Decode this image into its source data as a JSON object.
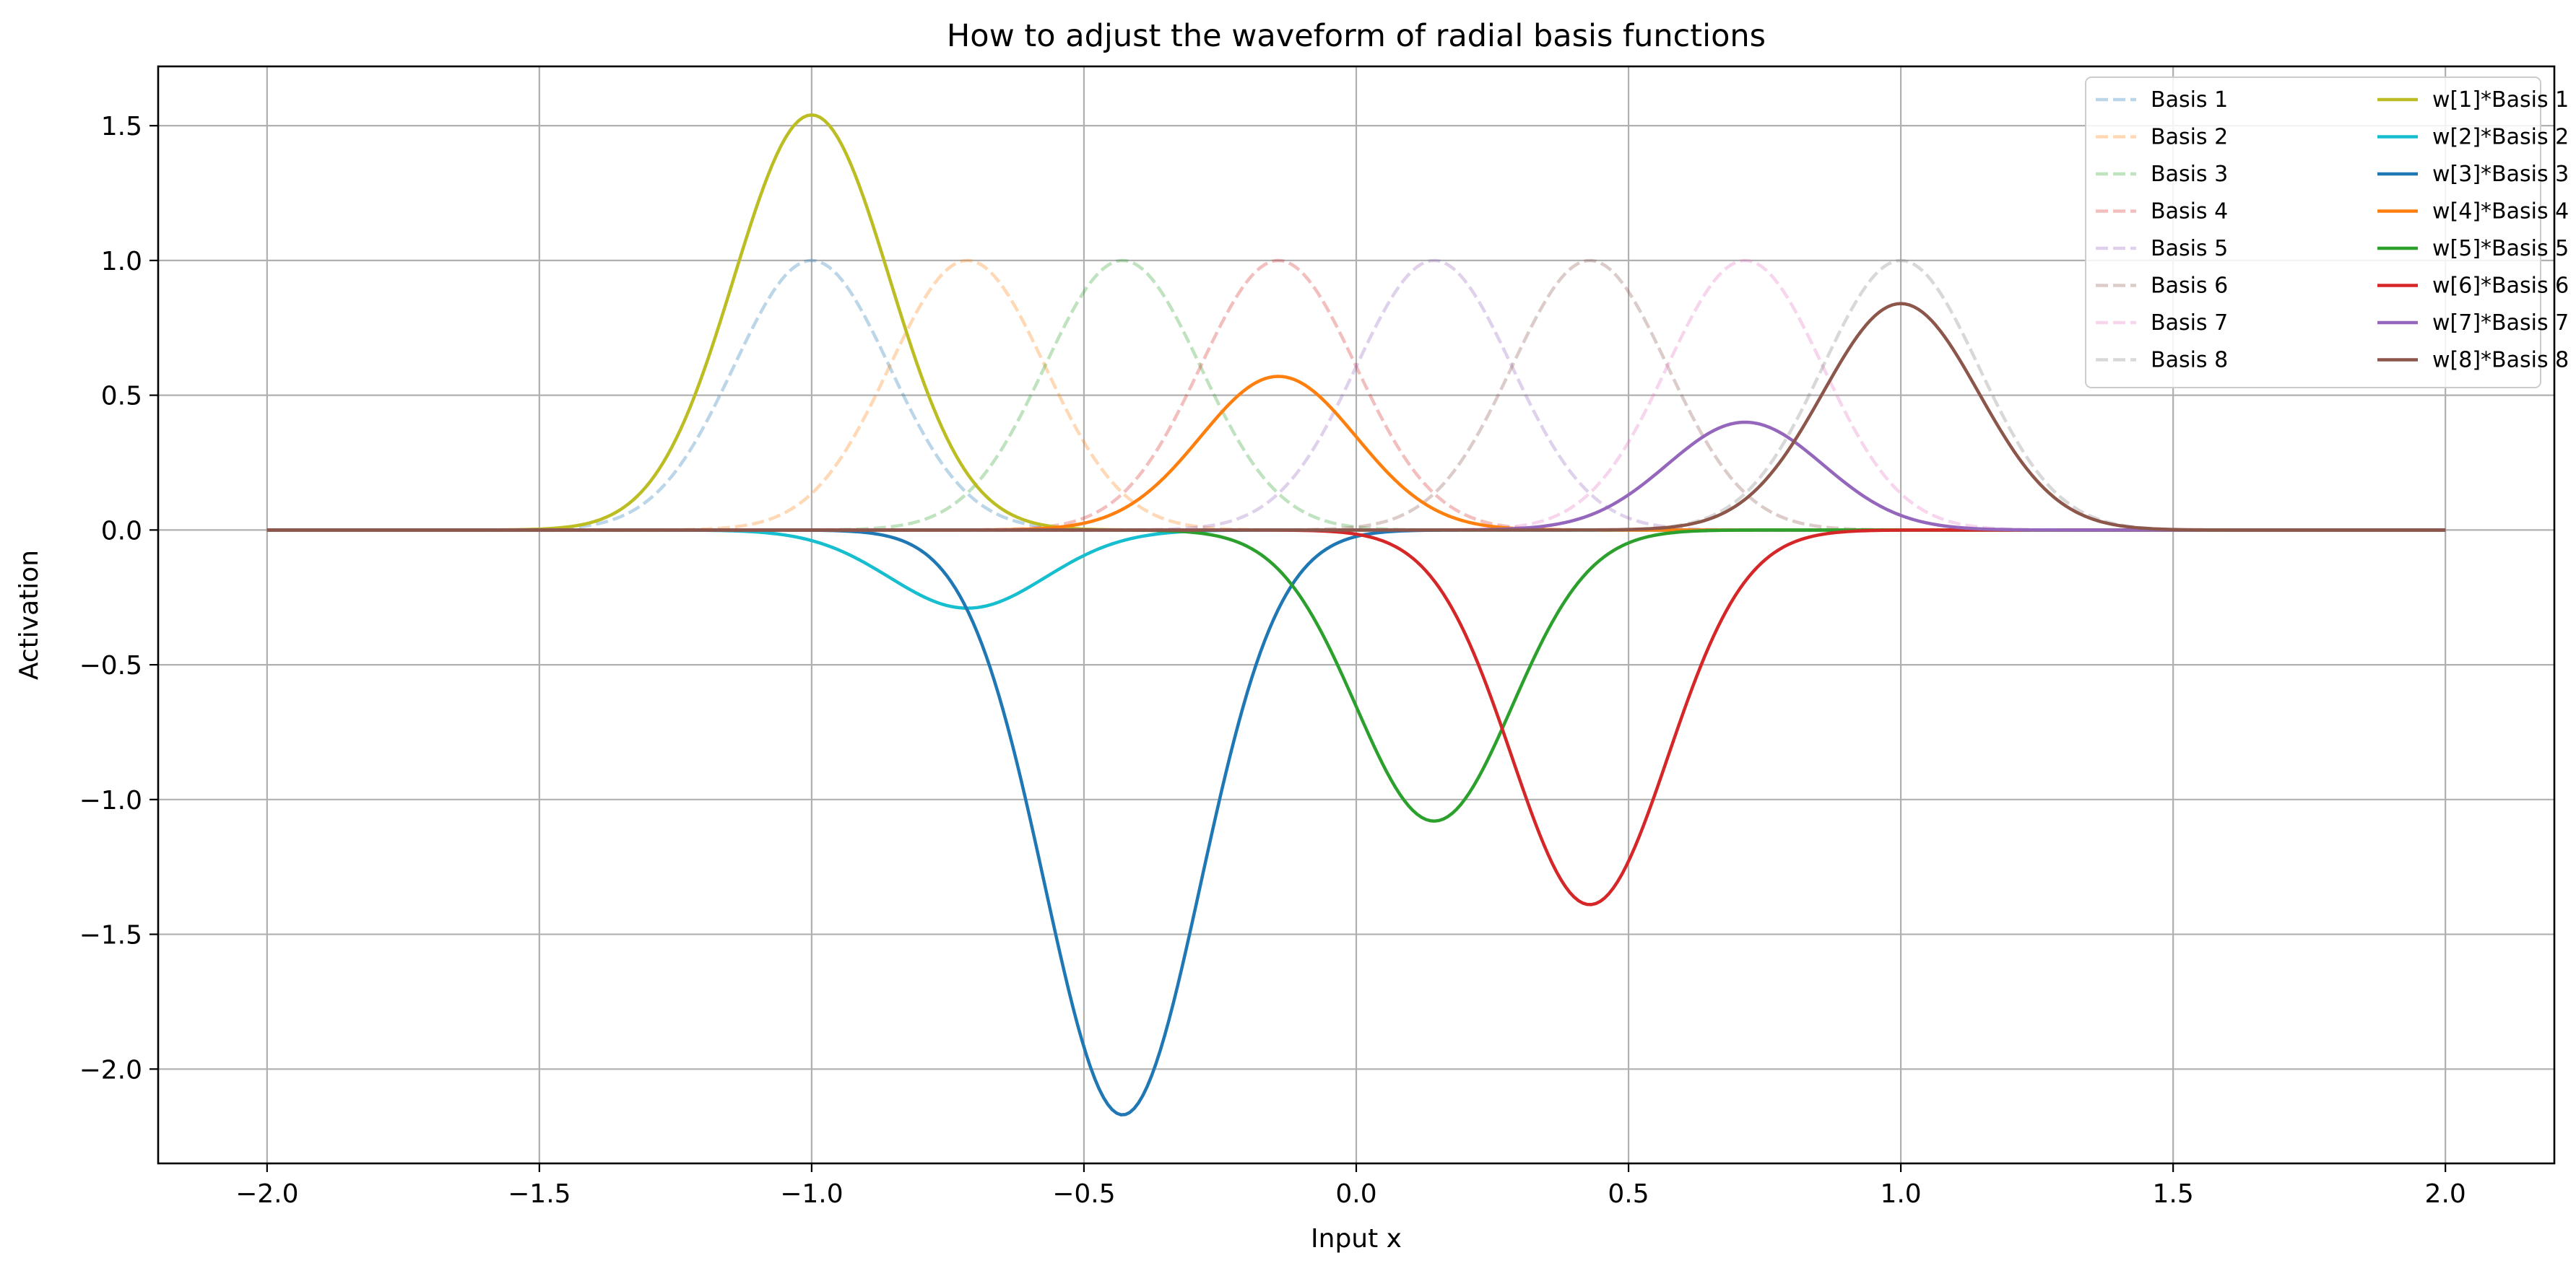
{
  "chart_data": {
    "type": "line",
    "title": "How to adjust the waveform of radial basis functions",
    "xlabel": "Input x",
    "ylabel": "Activation",
    "xlim": [
      -2.2,
      2.2
    ],
    "ylim": [
      -2.35,
      1.72
    ],
    "grid": true,
    "legend_location": "top-right",
    "legend_columns": 2,
    "x_domain": [
      -2.0,
      2.0
    ],
    "x_ticks": [
      -2.0,
      -1.5,
      -1.0,
      -0.5,
      0.0,
      0.5,
      1.0,
      1.5,
      2.0
    ],
    "x_tick_labels": [
      "−2.0",
      "−1.5",
      "−1.0",
      "−0.5",
      "0.0",
      "0.5",
      "1.0",
      "1.5",
      "2.0"
    ],
    "y_ticks": [
      -2.0,
      -1.5,
      -1.0,
      -0.5,
      0.0,
      0.5,
      1.0,
      1.5
    ],
    "y_tick_labels": [
      "−2.0",
      "−1.5",
      "−1.0",
      "−0.5",
      "0.0",
      "0.5",
      "1.0",
      "1.5"
    ],
    "gaussian_width_sigma": 0.143,
    "series": [
      {
        "name": "Basis 1",
        "center": -1.0,
        "amplitude": 1.0,
        "color": "#1f77b4",
        "style": "dashed",
        "opacity": 0.3
      },
      {
        "name": "Basis 2",
        "center": -0.714,
        "amplitude": 1.0,
        "color": "#ff7f0e",
        "style": "dashed",
        "opacity": 0.3
      },
      {
        "name": "Basis 3",
        "center": -0.429,
        "amplitude": 1.0,
        "color": "#2ca02c",
        "style": "dashed",
        "opacity": 0.3
      },
      {
        "name": "Basis 4",
        "center": -0.143,
        "amplitude": 1.0,
        "color": "#d62728",
        "style": "dashed",
        "opacity": 0.3
      },
      {
        "name": "Basis 5",
        "center": 0.143,
        "amplitude": 1.0,
        "color": "#9467bd",
        "style": "dashed",
        "opacity": 0.3
      },
      {
        "name": "Basis 6",
        "center": 0.429,
        "amplitude": 1.0,
        "color": "#8c564b",
        "style": "dashed",
        "opacity": 0.3
      },
      {
        "name": "Basis 7",
        "center": 0.714,
        "amplitude": 1.0,
        "color": "#e377c2",
        "style": "dashed",
        "opacity": 0.3
      },
      {
        "name": "Basis 8",
        "center": 1.0,
        "amplitude": 1.0,
        "color": "#7f7f7f",
        "style": "dashed",
        "opacity": 0.3
      },
      {
        "name": "w[1]*Basis 1",
        "center": -1.0,
        "amplitude": 1.54,
        "color": "#bcbd22",
        "style": "solid",
        "opacity": 1.0
      },
      {
        "name": "w[2]*Basis 2",
        "center": -0.714,
        "amplitude": -0.29,
        "color": "#17becf",
        "style": "solid",
        "opacity": 1.0
      },
      {
        "name": "w[3]*Basis 3",
        "center": -0.429,
        "amplitude": -2.17,
        "color": "#1f77b4",
        "style": "solid",
        "opacity": 1.0
      },
      {
        "name": "w[4]*Basis 4",
        "center": -0.143,
        "amplitude": 0.57,
        "color": "#ff7f0e",
        "style": "solid",
        "opacity": 1.0
      },
      {
        "name": "w[5]*Basis 5",
        "center": 0.143,
        "amplitude": -1.08,
        "color": "#2ca02c",
        "style": "solid",
        "opacity": 1.0
      },
      {
        "name": "w[6]*Basis 6",
        "center": 0.429,
        "amplitude": -1.39,
        "color": "#d62728",
        "style": "solid",
        "opacity": 1.0
      },
      {
        "name": "w[7]*Basis 7",
        "center": 0.714,
        "amplitude": 0.4,
        "color": "#9467bd",
        "style": "solid",
        "opacity": 1.0
      },
      {
        "name": "w[8]*Basis 8",
        "center": 1.0,
        "amplitude": 0.84,
        "color": "#8c564b",
        "style": "solid",
        "opacity": 1.0
      }
    ]
  }
}
